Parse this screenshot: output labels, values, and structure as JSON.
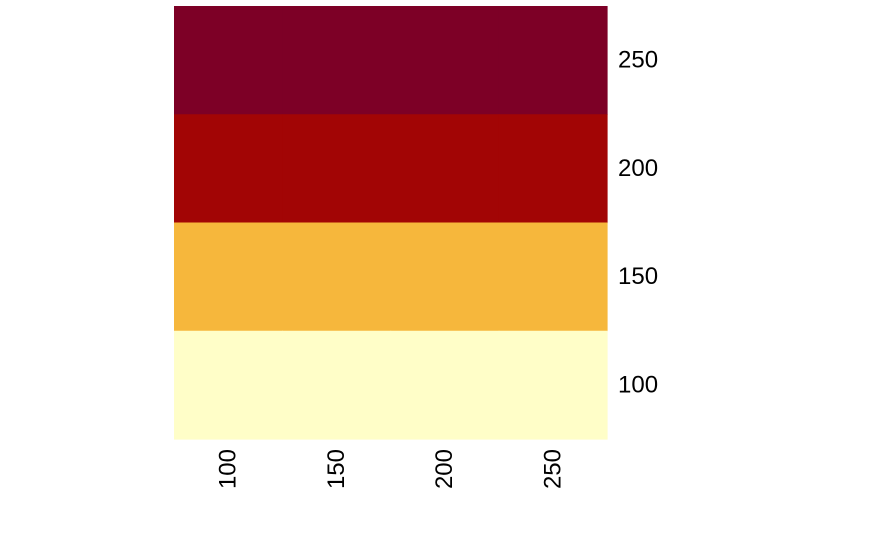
{
  "chart_data": {
    "type": "heatmap",
    "x_tick_labels": [
      "100",
      "150",
      "200",
      "250"
    ],
    "y_tick_labels": [
      "250",
      "200",
      "150",
      "100"
    ],
    "row_colors": [
      "#7d0026",
      "#a20505",
      "#f6b73c",
      "#fffec8"
    ],
    "grid": false,
    "legend": "none"
  }
}
